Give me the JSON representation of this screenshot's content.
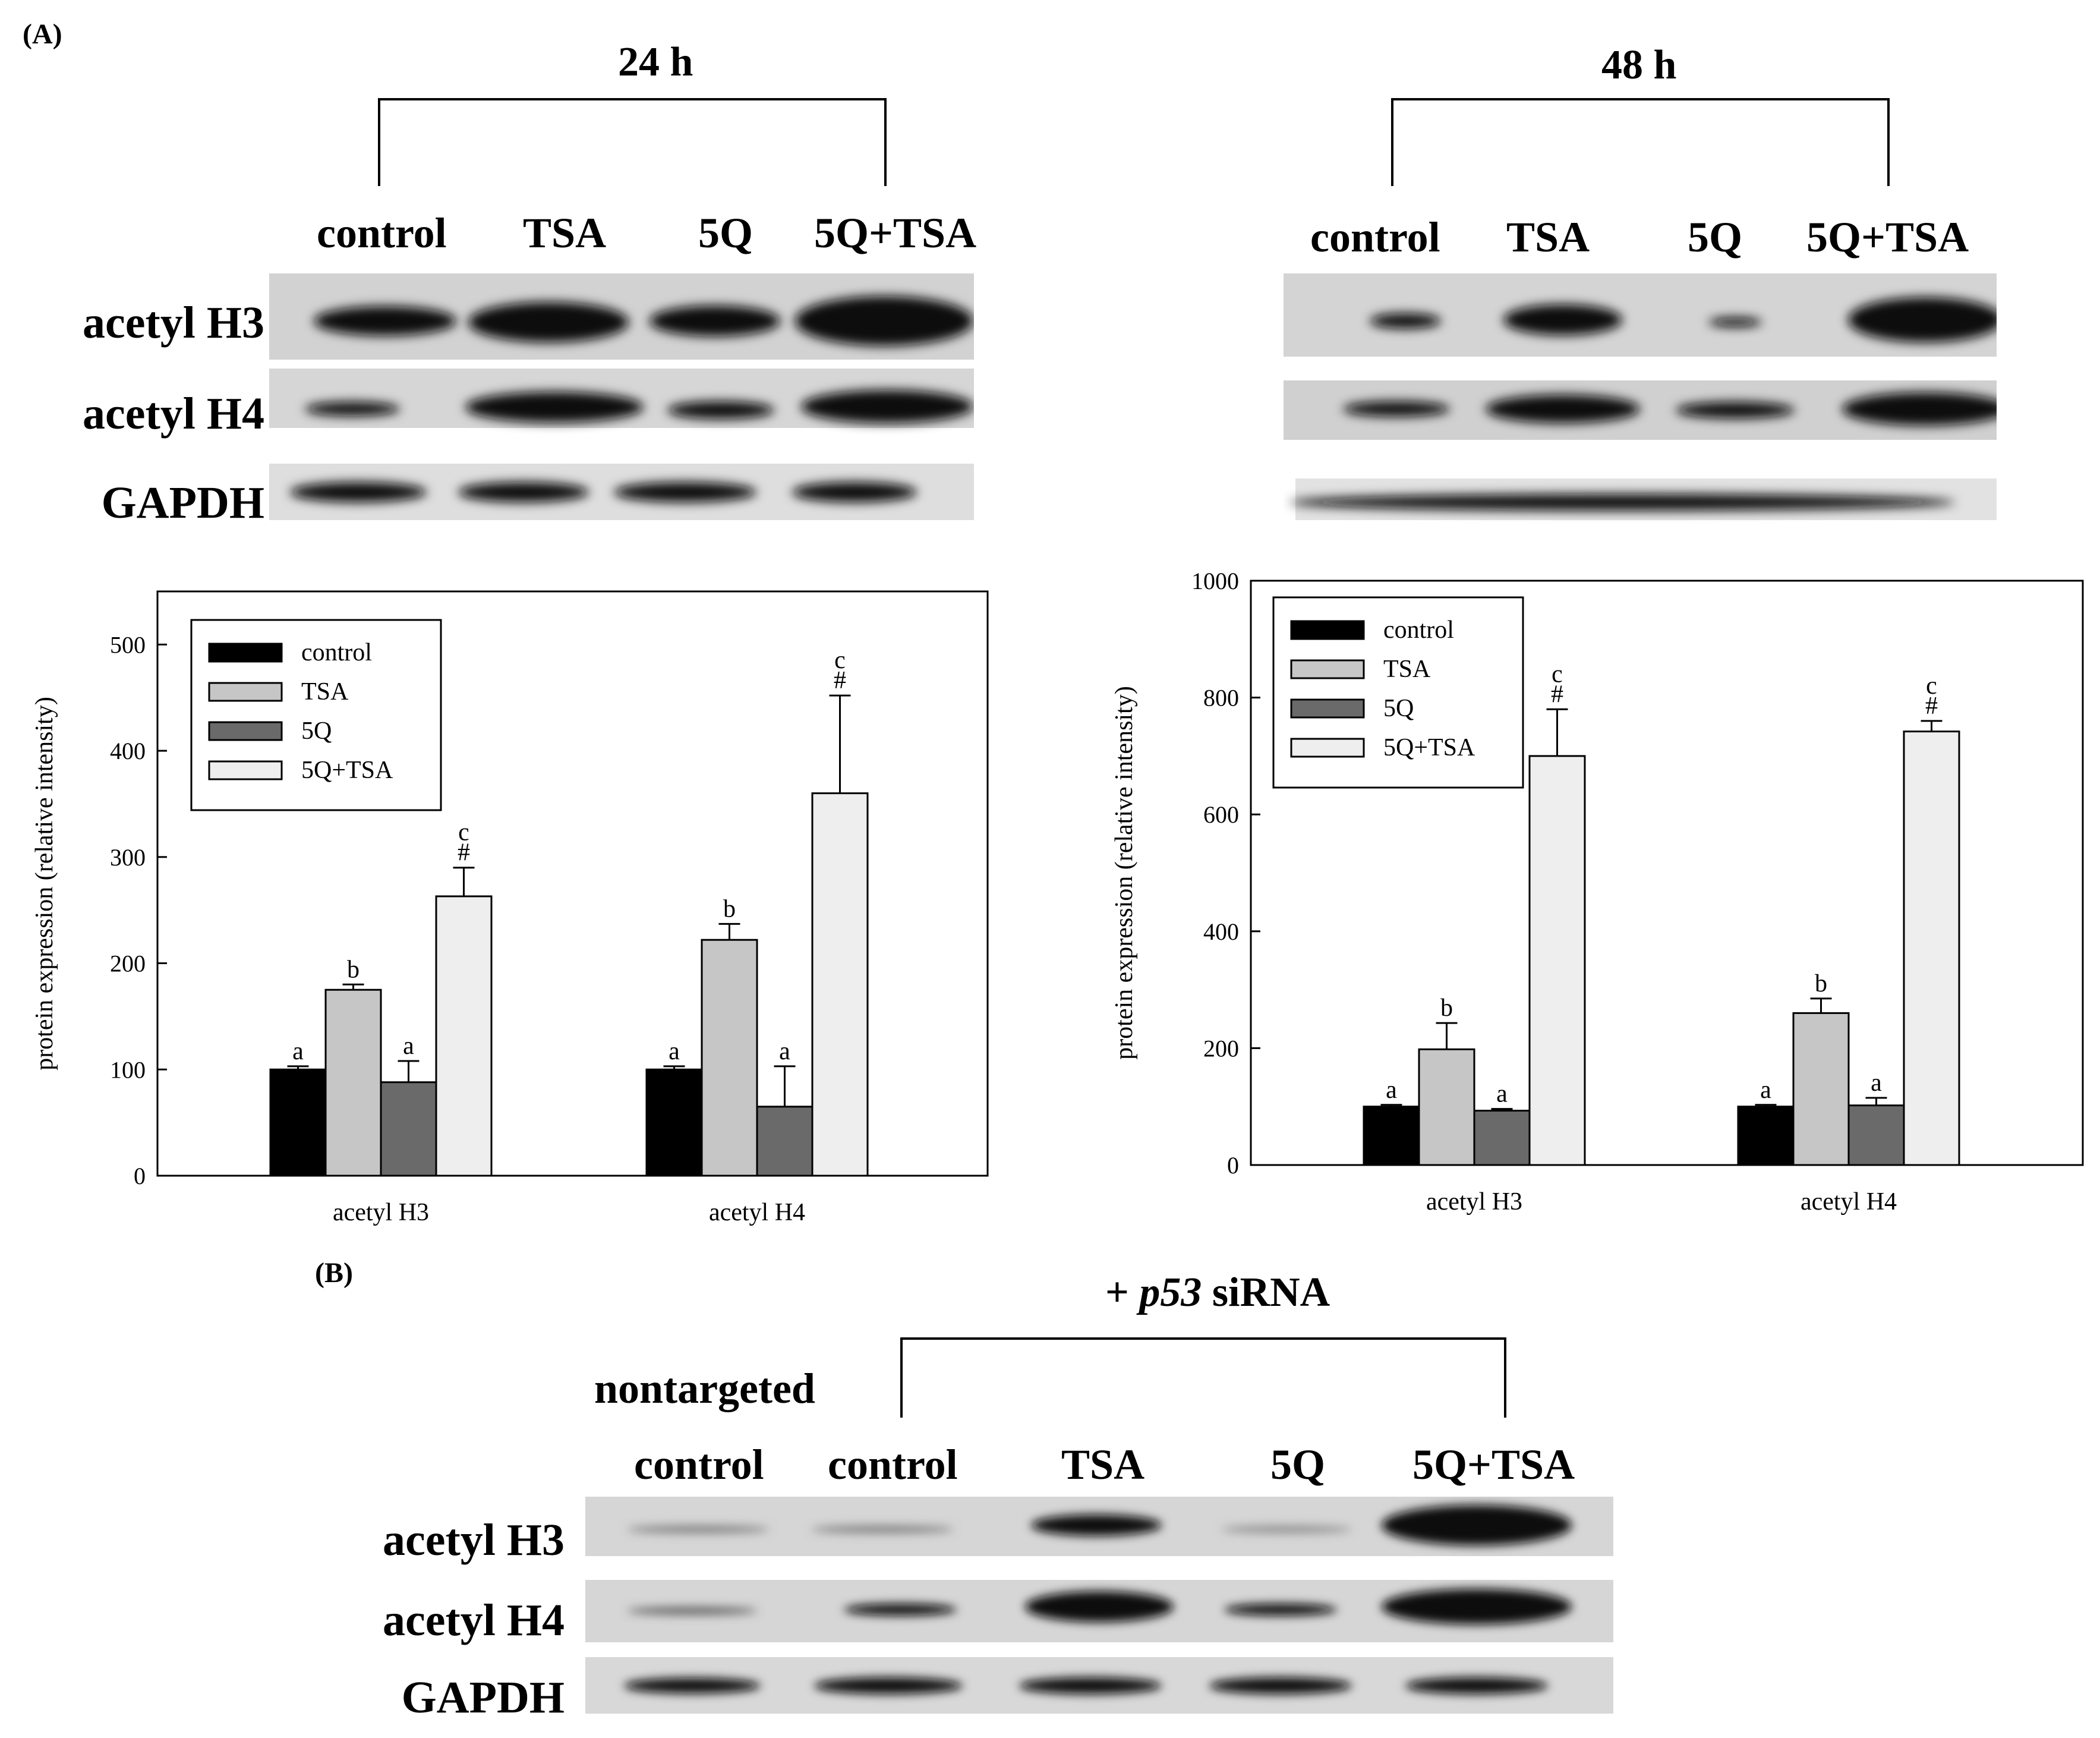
{
  "panel_a": {
    "label": "(A)",
    "blot_24h": {
      "time": "24 h",
      "lanes": [
        "control",
        "TSA",
        "5Q",
        "5Q+TSA"
      ],
      "rows": [
        "acetyl H3",
        "acetyl H4",
        "GAPDH"
      ]
    },
    "blot_48h": {
      "time": "48 h",
      "lanes": [
        "control",
        "TSA",
        "5Q",
        "5Q+TSA"
      ]
    }
  },
  "panel_b": {
    "label": "(B)",
    "title_prefix": "+ ",
    "title_gene": "p53",
    "title_suffix": " siRNA",
    "nontargeted": "nontargeted",
    "lanes": [
      "control",
      "control",
      "TSA",
      "5Q",
      "5Q+TSA"
    ],
    "rows": [
      "acetyl H3",
      "acetyl H4",
      "GAPDH"
    ]
  },
  "colors": {
    "control": "#000000",
    "TSA": "#c6c6c6",
    "5Q": "#6a6a6a",
    "5Q+TSA": "#eeeeee"
  },
  "chart_data": [
    {
      "type": "bar",
      "ylabel": "protein expression (relative intensity)",
      "ylim": [
        0,
        550
      ],
      "yticks": [
        0,
        100,
        200,
        300,
        400,
        500
      ],
      "categories": [
        "acetyl H3",
        "acetyl H4"
      ],
      "legend_position": "top-left",
      "series": [
        {
          "name": "control",
          "values": [
            100,
            100
          ],
          "errors": [
            3,
            3
          ],
          "labels": [
            "a",
            "a"
          ]
        },
        {
          "name": "TSA",
          "values": [
            175,
            222
          ],
          "errors": [
            5,
            15
          ],
          "labels": [
            "b",
            "b"
          ]
        },
        {
          "name": "5Q",
          "values": [
            88,
            65
          ],
          "errors": [
            20,
            38
          ],
          "labels": [
            "a",
            "a"
          ]
        },
        {
          "name": "5Q+TSA",
          "values": [
            263,
            360
          ],
          "errors": [
            27,
            92
          ],
          "labels": [
            "c\n#",
            "c\n#"
          ]
        }
      ]
    },
    {
      "type": "bar",
      "ylabel": "protein expression (relative intensity)",
      "ylim": [
        0,
        1000
      ],
      "yticks": [
        0,
        200,
        400,
        600,
        800,
        1000
      ],
      "categories": [
        "acetyl H3",
        "acetyl H4"
      ],
      "legend_position": "top-left",
      "series": [
        {
          "name": "control",
          "values": [
            100,
            100
          ],
          "errors": [
            3,
            3
          ],
          "labels": [
            "a",
            "a"
          ]
        },
        {
          "name": "TSA",
          "values": [
            198,
            260
          ],
          "errors": [
            45,
            25
          ],
          "labels": [
            "b",
            "b"
          ]
        },
        {
          "name": "5Q",
          "values": [
            93,
            102
          ],
          "errors": [
            3,
            13
          ],
          "labels": [
            "a",
            "a"
          ]
        },
        {
          "name": "5Q+TSA",
          "values": [
            700,
            742
          ],
          "errors": [
            80,
            18
          ],
          "labels": [
            "c\n#",
            "c\n#"
          ]
        }
      ]
    }
  ]
}
